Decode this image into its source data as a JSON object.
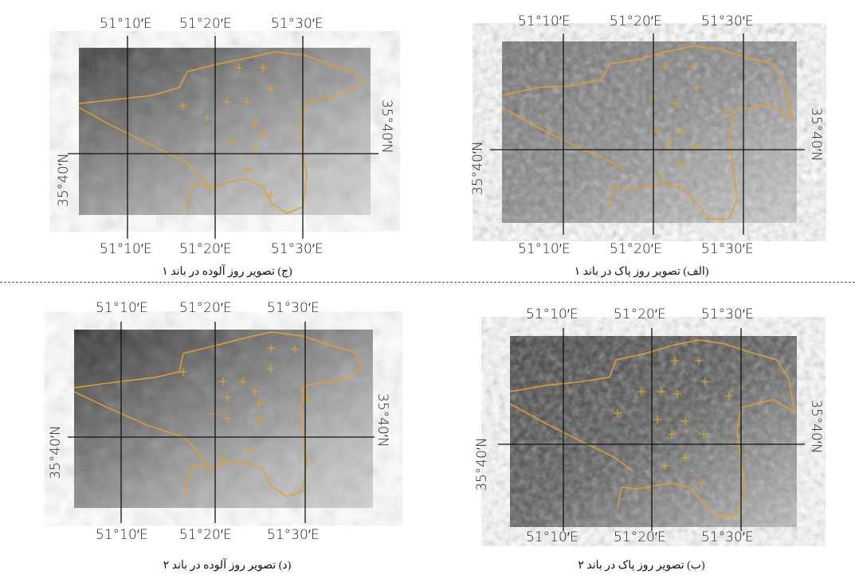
{
  "panels": [
    {
      "id": "alef",
      "caption": "(الف) تصویر روز پاک در باند ۱",
      "lon_labels": [
        "51°10′E",
        "51°20′E",
        "51°30′E"
      ],
      "lat_label": "35°40′N",
      "tone": "clear"
    },
    {
      "id": "jim",
      "caption": "(ج) تصویر روز آلوده در باند ۱",
      "lon_labels": [
        "51°10′E",
        "51°20′E",
        "51°30′E"
      ],
      "lat_label": "35°40′N",
      "tone": "hazy"
    },
    {
      "id": "be",
      "caption": "(ب) تصویر روز پاک در باند ۲",
      "lon_labels": [
        "51°10′E",
        "51°20′E",
        "51°30′E"
      ],
      "lat_label": "35°40′N",
      "tone": "clear-dark"
    },
    {
      "id": "dal",
      "caption": "(د) تصویر روز آلوده در باند ۲",
      "lon_labels": [
        "51°10′E",
        "51°20′E",
        "51°30′E"
      ],
      "lat_label": "35°40′N",
      "tone": "hazy"
    }
  ],
  "colors": {
    "boundary": "#e0a030",
    "marker": "#e0a030",
    "gridline": "#111111"
  }
}
